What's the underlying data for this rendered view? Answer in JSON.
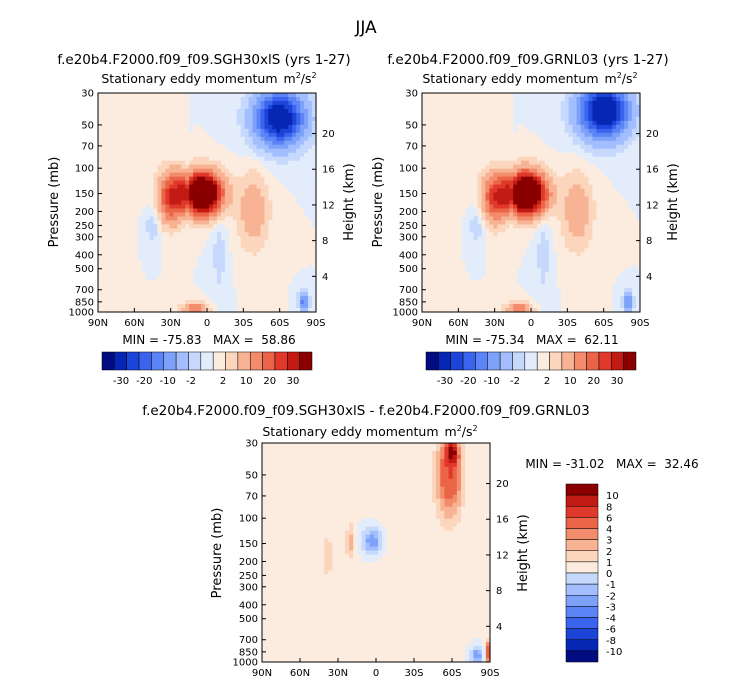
{
  "main_title": "JJA",
  "colors": {
    "neg": [
      "#000c80",
      "#0626b4",
      "#1c44d8",
      "#3a64ee",
      "#5b84f6",
      "#7ea2fa",
      "#a2beff",
      "#c6d8fc",
      "#e3ecfb"
    ],
    "pos": [
      "#fcecdf",
      "#fbd6bd",
      "#f7b394",
      "#f28c6c",
      "#ec6447",
      "#e0392b",
      "#c21b14",
      "#8a0000"
    ]
  },
  "chart_data": [
    {
      "type": "heatmap",
      "id": "panel1",
      "title": "f.e20b4.F2000.f09_f09.SGH30xlS (yrs 1-27)",
      "subtitle": "Stationary eddy momentum",
      "units": "m",
      "units_sup": "2",
      "units_tail": "/s",
      "units_sup2": "2",
      "ylabel": "Pressure (mb)",
      "ylabel_right": "Height (km)",
      "x_ticks": [
        "90N",
        "60N",
        "30N",
        "0",
        "30S",
        "60S",
        "90S"
      ],
      "y_ticks": [
        "30",
        "50",
        "70",
        "100",
        "150",
        "200",
        "250",
        "300",
        "400",
        "500",
        "700",
        "850",
        "1000"
      ],
      "height_ticks": [
        "20",
        "16",
        "12",
        "8",
        "4"
      ],
      "stats": "MIN = -75.83   MAX =  58.86",
      "colorbar_labels": [
        "-30",
        "-20",
        "-10",
        "-2",
        "2",
        "10",
        "20",
        "30"
      ],
      "features": [
        {
          "lat": 5,
          "p": 150,
          "w": 16,
          "h": 0.09,
          "v": 58
        },
        {
          "lat": 30,
          "p": 160,
          "w": 10,
          "h": 0.11,
          "v": 22
        },
        {
          "lat": 15,
          "p": 150,
          "w": 4,
          "h": 0.1,
          "v": -12
        },
        {
          "lat": -38,
          "p": 200,
          "w": 12,
          "h": 0.16,
          "v": 9
        },
        {
          "lat": -60,
          "p": 45,
          "w": 20,
          "h": 0.12,
          "v": -38
        },
        {
          "lat": -80,
          "p": 850,
          "w": 4,
          "h": 0.04,
          "v": -18
        },
        {
          "lat": 10,
          "p": 950,
          "w": 10,
          "h": 0.03,
          "v": 14
        },
        {
          "lat": 45,
          "p": 250,
          "w": 6,
          "h": 0.08,
          "v": -4
        },
        {
          "lat": -10,
          "p": 400,
          "w": 6,
          "h": 0.2,
          "v": -3
        },
        {
          "lat": 55,
          "p": 80,
          "w": 14,
          "h": 0.2,
          "v": 1
        }
      ]
    },
    {
      "type": "heatmap",
      "id": "panel2",
      "title": "f.e20b4.F2000.f09_f09.GRNL03 (yrs 1-27)",
      "subtitle": "Stationary eddy momentum",
      "units": "m",
      "units_sup": "2",
      "units_tail": "/s",
      "units_sup2": "2",
      "ylabel": "Pressure (mb)",
      "ylabel_right": "Height (km)",
      "x_ticks": [
        "90N",
        "60N",
        "30N",
        "0",
        "30S",
        "60S",
        "90S"
      ],
      "y_ticks": [
        "30",
        "50",
        "70",
        "100",
        "150",
        "200",
        "250",
        "300",
        "400",
        "500",
        "700",
        "850",
        "1000"
      ],
      "height_ticks": [
        "20",
        "16",
        "12",
        "8",
        "4"
      ],
      "stats": "MIN = -75.34   MAX =  62.11",
      "colorbar_labels": [
        "-30",
        "-20",
        "-10",
        "-2",
        "2",
        "10",
        "20",
        "30"
      ],
      "features": [
        {
          "lat": 5,
          "p": 150,
          "w": 16,
          "h": 0.09,
          "v": 60
        },
        {
          "lat": 30,
          "p": 160,
          "w": 10,
          "h": 0.11,
          "v": 20
        },
        {
          "lat": 15,
          "p": 150,
          "w": 4,
          "h": 0.1,
          "v": -12
        },
        {
          "lat": -38,
          "p": 200,
          "w": 12,
          "h": 0.16,
          "v": 9
        },
        {
          "lat": -60,
          "p": 40,
          "w": 20,
          "h": 0.12,
          "v": -40
        },
        {
          "lat": -80,
          "p": 850,
          "w": 4,
          "h": 0.04,
          "v": -16
        },
        {
          "lat": 10,
          "p": 950,
          "w": 10,
          "h": 0.03,
          "v": 14
        },
        {
          "lat": 45,
          "p": 250,
          "w": 6,
          "h": 0.08,
          "v": -4
        },
        {
          "lat": -10,
          "p": 400,
          "w": 6,
          "h": 0.2,
          "v": -3
        },
        {
          "lat": 55,
          "p": 80,
          "w": 14,
          "h": 0.2,
          "v": 1
        }
      ]
    },
    {
      "type": "heatmap",
      "id": "panel3",
      "title": "f.e20b4.F2000.f09_f09.SGH30xlS - f.e20b4.F2000.f09_f09.GRNL03",
      "subtitle": "Stationary eddy momentum",
      "units": "m",
      "units_sup": "2",
      "units_tail": "/s",
      "units_sup2": "2",
      "ylabel": "Pressure (mb)",
      "ylabel_right": "Height (km)",
      "x_ticks": [
        "90N",
        "60N",
        "30N",
        "0",
        "30S",
        "60S",
        "90S"
      ],
      "y_ticks": [
        "30",
        "50",
        "70",
        "100",
        "150",
        "200",
        "250",
        "300",
        "400",
        "500",
        "700",
        "850",
        "1000"
      ],
      "height_ticks": [
        "20",
        "16",
        "12",
        "8",
        "4"
      ],
      "stats": "MIN = -31.02   MAX =  32.46",
      "colorbar_labels": [
        "10",
        "8",
        "6",
        "4",
        "3",
        "2",
        "1",
        "0",
        "-1",
        "-2",
        "-3",
        "-4",
        "-6",
        "-8",
        "-10"
      ],
      "features": [
        {
          "lat": -58,
          "p": 50,
          "w": 10,
          "h": 0.18,
          "v": 6
        },
        {
          "lat": -60,
          "p": 35,
          "w": 4,
          "h": 0.05,
          "v": 9
        },
        {
          "lat": 3,
          "p": 145,
          "w": 8,
          "h": 0.06,
          "v": -4
        },
        {
          "lat": 20,
          "p": 145,
          "w": 4,
          "h": 0.08,
          "v": 2.5
        },
        {
          "lat": 38,
          "p": 180,
          "w": 5,
          "h": 0.12,
          "v": 1.3
        },
        {
          "lat": -30,
          "p": 300,
          "w": 40,
          "h": 0.35,
          "v": 0.6
        },
        {
          "lat": -80,
          "p": 900,
          "w": 5,
          "h": 0.04,
          "v": -4
        },
        {
          "lat": -88,
          "p": 850,
          "w": 2,
          "h": 0.05,
          "v": 6
        },
        {
          "lat": 60,
          "p": 400,
          "w": 25,
          "h": 0.5,
          "v": 0.5
        }
      ]
    }
  ]
}
